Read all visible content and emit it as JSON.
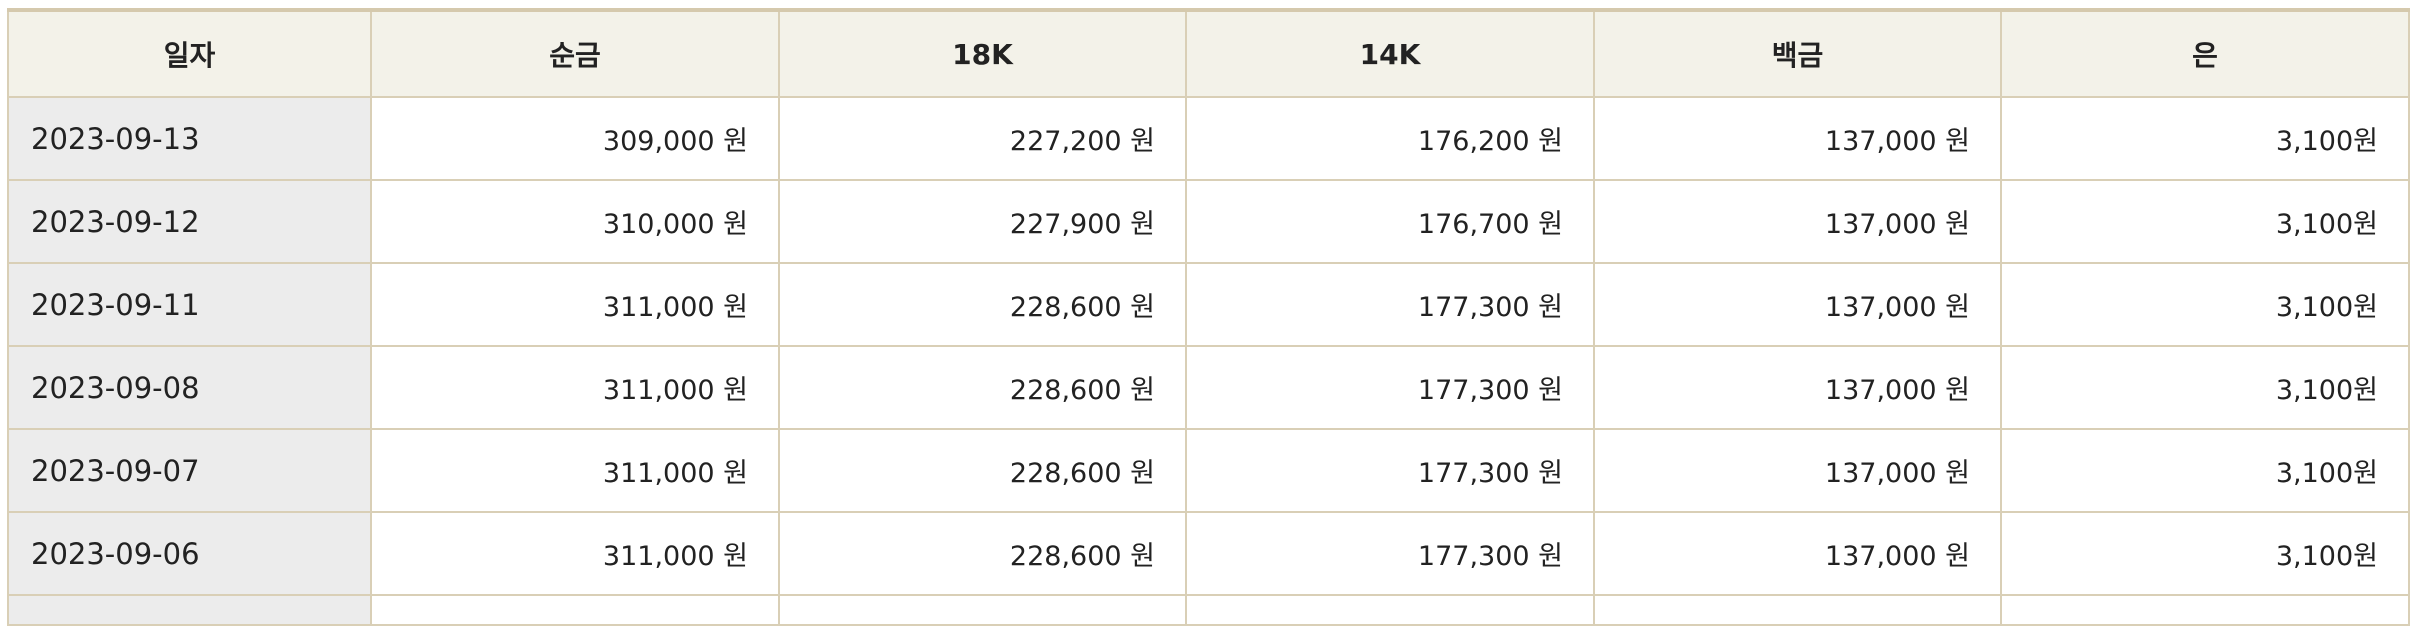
{
  "table": {
    "headers": [
      "일자",
      "순금",
      "18K",
      "14K",
      "백금",
      "은"
    ],
    "rows": [
      [
        "2023-09-13",
        "309,000 원",
        "227,200 원",
        "176,200 원",
        "137,000 원",
        "3,100원"
      ],
      [
        "2023-09-12",
        "310,000 원",
        "227,900 원",
        "176,700 원",
        "137,000 원",
        "3,100원"
      ],
      [
        "2023-09-11",
        "311,000 원",
        "228,600 원",
        "177,300 원",
        "137,000 원",
        "3,100원"
      ],
      [
        "2023-09-08",
        "311,000 원",
        "228,600 원",
        "177,300 원",
        "137,000 원",
        "3,100원"
      ],
      [
        "2023-09-07",
        "311,000 원",
        "228,600 원",
        "177,300 원",
        "137,000 원",
        "3,100원"
      ],
      [
        "2023-09-06",
        "311,000 원",
        "228,600 원",
        "177,300 원",
        "137,000 원",
        "3,100원"
      ]
    ]
  },
  "colors": {
    "header_bg": "#f3f2e9",
    "border": "#d5c9ad",
    "date_bg": "#ececec"
  }
}
